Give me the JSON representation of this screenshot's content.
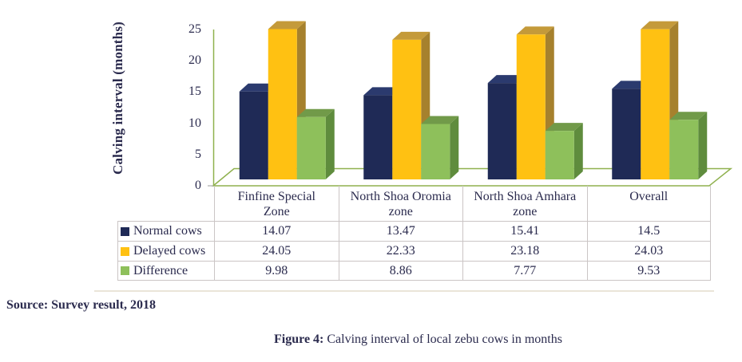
{
  "chart_data": {
    "type": "bar",
    "title": "",
    "ylabel": "Calving interval (months)",
    "xlabel": "",
    "categories": [
      "Finfine Special Zone",
      "North Shoa Oromia zone",
      "North Shoa Amhara zone",
      "Overall"
    ],
    "series": [
      {
        "name": "Normal cows",
        "values": [
          14.07,
          13.47,
          15.41,
          14.5
        ],
        "color_front": "#1f2a56",
        "color_top": "#2b3a6e",
        "color_side": "#1a2348"
      },
      {
        "name": "Delayed cows",
        "values": [
          24.05,
          22.33,
          23.18,
          24.03
        ],
        "color_front": "#ffc112",
        "color_top": "#c49a3a",
        "color_side": "#a6812d"
      },
      {
        "name": "Difference",
        "values": [
          9.98,
          8.86,
          7.77,
          9.53
        ],
        "color_front": "#8ec05b",
        "color_top": "#719a49",
        "color_side": "#5f8c3d"
      }
    ],
    "yticks": [
      0,
      5,
      10,
      15,
      20,
      25
    ],
    "ylim": [
      0,
      25
    ],
    "grid": false,
    "axis_color": "#8fb14e",
    "legend_position": "table-rows",
    "style": "3d-clustered-column"
  },
  "figure": {
    "source": "Source: Survey result, 2018",
    "caption_prefix": "Figure 4:",
    "caption_rest": " Calving interval of local zebu cows in months"
  }
}
